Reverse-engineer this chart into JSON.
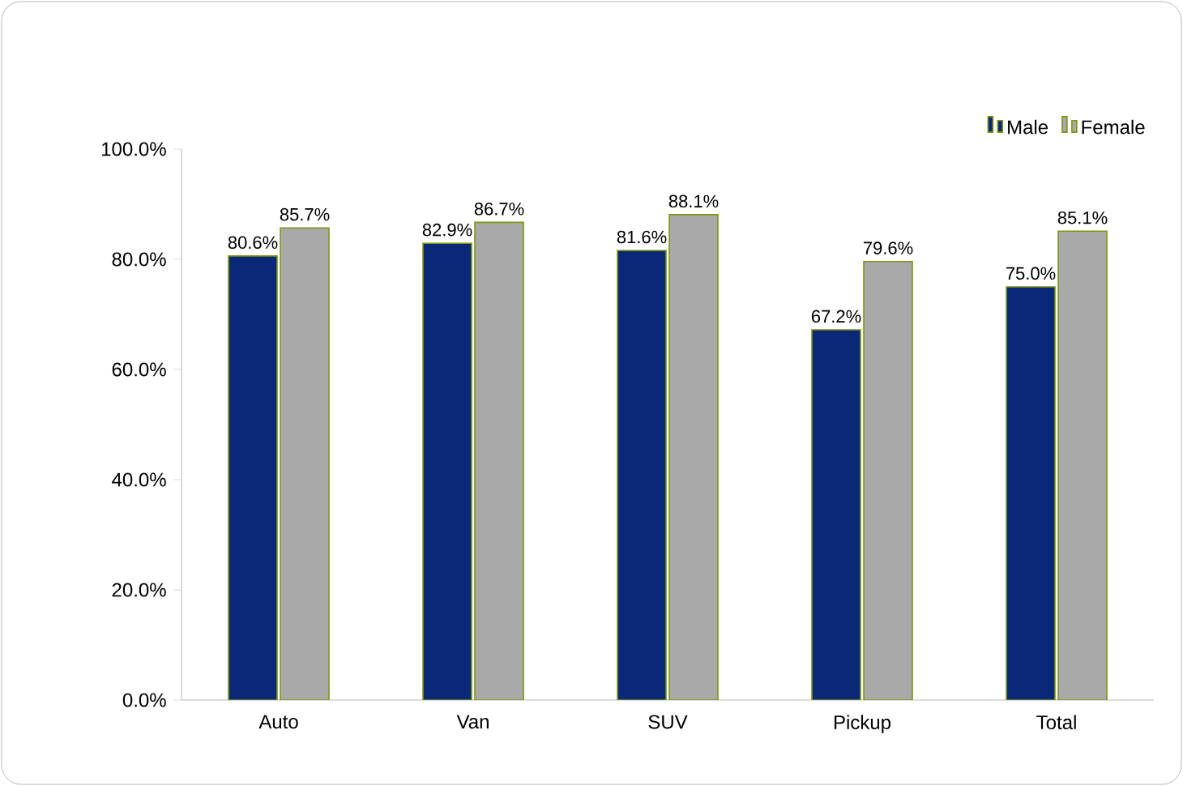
{
  "chart_data": {
    "type": "bar",
    "categories": [
      "Auto",
      "Van",
      "SUV",
      "Pickup",
      "Total"
    ],
    "series": [
      {
        "name": "Male",
        "color": "#0b2878",
        "values": [
          80.6,
          82.9,
          81.6,
          67.2,
          75.0
        ],
        "value_labels": [
          "80.6%",
          "82.9%",
          "81.6%",
          "67.2%",
          "75.0%"
        ]
      },
      {
        "name": "Female",
        "color": "#a9a9a9",
        "values": [
          85.7,
          86.7,
          88.1,
          79.6,
          85.1
        ],
        "value_labels": [
          "85.7%",
          "86.7%",
          "88.1%",
          "79.6%",
          "85.1%"
        ]
      }
    ],
    "ylim": [
      0,
      100
    ],
    "yticks": [
      {
        "value": 0,
        "label": "0.0%"
      },
      {
        "value": 20,
        "label": "20.0%"
      },
      {
        "value": 40,
        "label": "40.0%"
      },
      {
        "value": 60,
        "label": "60.0%"
      },
      {
        "value": 80,
        "label": "80.0%"
      },
      {
        "value": 100,
        "label": "100.0%"
      }
    ],
    "legend": "top right"
  }
}
